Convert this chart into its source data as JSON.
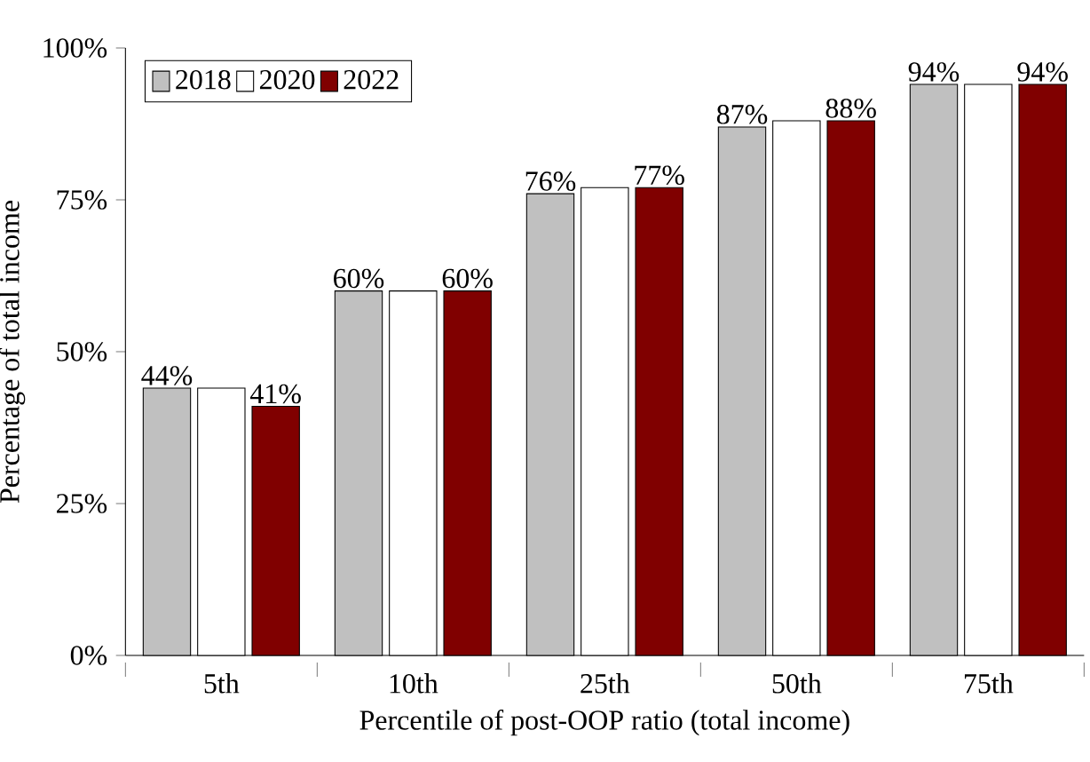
{
  "chart_data": {
    "type": "bar",
    "xlabel": "Percentile of post-OOP ratio (total income)",
    "ylabel": "Percentage of total income",
    "categories": [
      "5th",
      "10th",
      "25th",
      "50th",
      "75th"
    ],
    "ylim": [
      0,
      100
    ],
    "yticks": [
      {
        "value": 0,
        "label": "0%"
      },
      {
        "value": 25,
        "label": "25%"
      },
      {
        "value": 50,
        "label": "50%"
      },
      {
        "value": 75,
        "label": "75%"
      },
      {
        "value": 100,
        "label": "100%"
      }
    ],
    "legend": "top left",
    "grid": false,
    "series": [
      {
        "name": "2018",
        "color": "#c0c0c0",
        "values": [
          44,
          60,
          76,
          87,
          94
        ],
        "value_labels": [
          "44%",
          "60%",
          "76%",
          "87%",
          "94%"
        ]
      },
      {
        "name": "2020",
        "color": "#ffffff",
        "values": [
          44,
          60,
          77,
          88,
          94
        ],
        "value_labels": [
          null,
          null,
          null,
          null,
          null
        ]
      },
      {
        "name": "2022",
        "color": "#800000",
        "values": [
          41,
          60,
          77,
          88,
          94
        ],
        "value_labels": [
          "41%",
          "60%",
          "77%",
          "88%",
          "94%"
        ]
      }
    ]
  }
}
